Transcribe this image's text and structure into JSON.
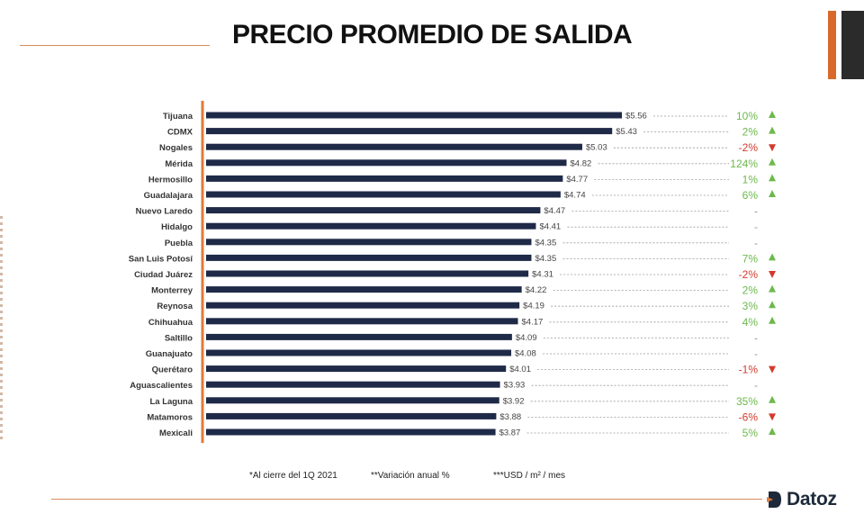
{
  "title": "PRECIO PROMEDIO DE SALIDA",
  "footnotes": {
    "note1": "*Al cierre del 1Q 2021",
    "note2": "**Variación anual %",
    "note3": "***USD / m² / mes"
  },
  "logo": {
    "text": "Datoz"
  },
  "colors": {
    "bar": "#1e2a47",
    "axis": "#e07b39",
    "positive": "#6cb94c",
    "negative": "#d33a2c",
    "neutral": "#9a9a9a"
  },
  "chart_data": {
    "type": "bar",
    "orientation": "horizontal",
    "xlim": [
      0,
      5.56
    ],
    "categories": [
      "Tijuana",
      "CDMX",
      "Nogales",
      "Mérida",
      "Hermosillo",
      "Guadalajara",
      "Nuevo Laredo",
      "Hidalgo",
      "Puebla",
      "San Luis Potosí",
      "Ciudad Juárez",
      "Monterrey",
      "Reynosa",
      "Chihuahua",
      "Saltillo",
      "Guanajuato",
      "Querétaro",
      "Aguascalientes",
      "La Laguna",
      "Matamoros",
      "Mexicali"
    ],
    "values": [
      5.56,
      5.43,
      5.03,
      4.82,
      4.77,
      4.74,
      4.47,
      4.41,
      4.35,
      4.35,
      4.31,
      4.22,
      4.19,
      4.17,
      4.09,
      4.08,
      4.01,
      3.93,
      3.92,
      3.88,
      3.87
    ],
    "value_labels": [
      "$5.56",
      "$5.43",
      "$5.03",
      "$4.82",
      "$4.77",
      "$4.74",
      "$4.47",
      "$4.41",
      "$4.35",
      "$4.35",
      "$4.31",
      "$4.22",
      "$4.19",
      "$4.17",
      "$4.09",
      "$4.08",
      "$4.01",
      "$3.93",
      "$3.92",
      "$3.88",
      "$3.87"
    ],
    "variation_labels": [
      "10%",
      "2%",
      "-2%",
      "124%",
      "1%",
      "6%",
      "-",
      "-",
      "-",
      "7%",
      "-2%",
      "2%",
      "3%",
      "4%",
      "-",
      "-",
      "-1%",
      "-",
      "35%",
      "-6%",
      "5%"
    ],
    "trend": [
      "up",
      "up",
      "down",
      "up",
      "up",
      "up",
      "none",
      "none",
      "none",
      "up",
      "down",
      "up",
      "up",
      "up",
      "none",
      "none",
      "down",
      "none",
      "up",
      "down",
      "up"
    ]
  }
}
